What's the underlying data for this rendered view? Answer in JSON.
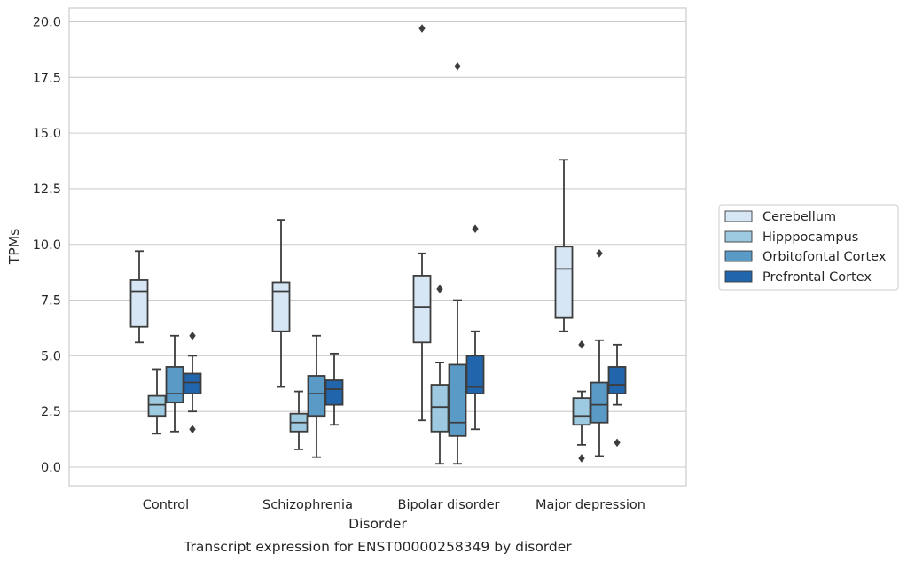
{
  "chart_data": {
    "type": "boxplot",
    "caption": "Transcript expression for ENST00000258349 by disorder",
    "xlabel": "Disorder",
    "ylabel": "TPMs",
    "ylim": [
      -0.8,
      20.6
    ],
    "yticks": [
      "0.0",
      "2.5",
      "5.0",
      "7.5",
      "10.0",
      "12.5",
      "15.0",
      "17.5",
      "20.0"
    ],
    "grid": "horizontal",
    "legend_placement": "right, outside",
    "categories": [
      "Control",
      "Schizophrenia",
      "Bipolar disorder",
      "Major depression"
    ],
    "series": [
      {
        "name": "Cerebellum",
        "color": "#d6e6f4",
        "boxes": [
          {
            "whislo": 5.6,
            "q1": 6.3,
            "med": 7.9,
            "q3": 8.4,
            "whishi": 9.7,
            "fliers": []
          },
          {
            "whislo": 3.6,
            "q1": 6.1,
            "med": 7.9,
            "q3": 8.3,
            "whishi": 11.1,
            "fliers": []
          },
          {
            "whislo": 2.1,
            "q1": 5.6,
            "med": 7.2,
            "q3": 8.6,
            "whishi": 9.6,
            "fliers": [
              19.7
            ]
          },
          {
            "whislo": 6.1,
            "q1": 6.7,
            "med": 8.9,
            "q3": 9.9,
            "whishi": 13.8,
            "fliers": []
          }
        ]
      },
      {
        "name": "Hipppocampus",
        "color": "#9ecae1",
        "boxes": [
          {
            "whislo": 1.5,
            "q1": 2.3,
            "med": 2.8,
            "q3": 3.2,
            "whishi": 4.4,
            "fliers": []
          },
          {
            "whislo": 0.8,
            "q1": 1.6,
            "med": 2.0,
            "q3": 2.4,
            "whishi": 3.4,
            "fliers": []
          },
          {
            "whislo": 0.15,
            "q1": 1.6,
            "med": 2.7,
            "q3": 3.7,
            "whishi": 4.7,
            "fliers": [
              8.0
            ]
          },
          {
            "whislo": 1.0,
            "q1": 1.9,
            "med": 2.3,
            "q3": 3.1,
            "whishi": 3.4,
            "fliers": [
              5.5,
              0.4
            ]
          }
        ]
      },
      {
        "name": "Orbitofontal Cortex",
        "color": "#5a9ac6",
        "boxes": [
          {
            "whislo": 1.6,
            "q1": 2.9,
            "med": 3.3,
            "q3": 4.5,
            "whishi": 5.9,
            "fliers": []
          },
          {
            "whislo": 0.45,
            "q1": 2.3,
            "med": 3.3,
            "q3": 4.1,
            "whishi": 5.9,
            "fliers": []
          },
          {
            "whislo": 0.15,
            "q1": 1.4,
            "med": 2.0,
            "q3": 4.6,
            "whishi": 7.5,
            "fliers": [
              18.0
            ]
          },
          {
            "whislo": 0.5,
            "q1": 2.0,
            "med": 2.8,
            "q3": 3.8,
            "whishi": 5.7,
            "fliers": [
              9.6
            ]
          }
        ]
      },
      {
        "name": "Prefrontal Cortex",
        "color": "#2166ac",
        "boxes": [
          {
            "whislo": 2.5,
            "q1": 3.3,
            "med": 3.8,
            "q3": 4.2,
            "whishi": 5.0,
            "fliers": [
              5.9,
              1.7
            ]
          },
          {
            "whislo": 1.9,
            "q1": 2.8,
            "med": 3.5,
            "q3": 3.9,
            "whishi": 5.1,
            "fliers": []
          },
          {
            "whislo": 1.7,
            "q1": 3.3,
            "med": 3.6,
            "q3": 5.0,
            "whishi": 6.1,
            "fliers": [
              10.7
            ]
          },
          {
            "whislo": 2.8,
            "q1": 3.3,
            "med": 3.7,
            "q3": 4.5,
            "whishi": 5.5,
            "fliers": [
              1.1
            ]
          }
        ]
      }
    ]
  }
}
